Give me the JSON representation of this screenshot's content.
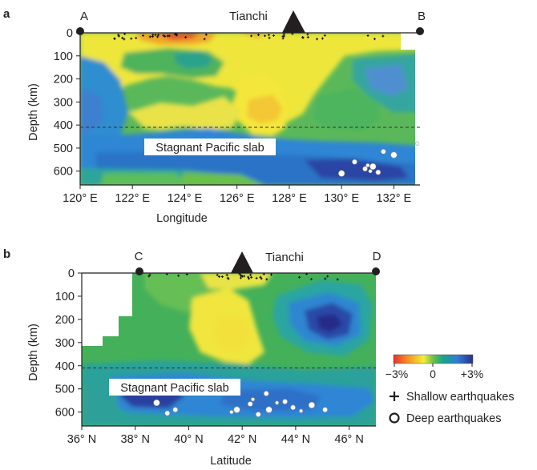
{
  "figure": {
    "panels": [
      {
        "label": "a",
        "top_label": "Tianchi",
        "endpoints": [
          "A",
          "B"
        ],
        "slab_label": "Stagnant Pacific slab",
        "xlabel": "Longitude",
        "ylabel": "Depth (km)",
        "x_ticks": [
          "120° E",
          "122° E",
          "124° E",
          "126° E",
          "128° E",
          "130° E",
          "132° E"
        ],
        "y_ticks": [
          "0",
          "100",
          "200",
          "300",
          "400",
          "500",
          "600"
        ]
      },
      {
        "label": "b",
        "top_label": "Tianchi",
        "endpoints": [
          "C",
          "D"
        ],
        "slab_label": "Stagnant Pacific slab",
        "xlabel": "Latitude",
        "ylabel": "Depth (km)",
        "x_ticks": [
          "36° N",
          "38° N",
          "40° N",
          "42° N",
          "44° N",
          "46° N"
        ],
        "y_ticks": [
          "0",
          "100",
          "200",
          "300",
          "400",
          "500",
          "600"
        ]
      }
    ],
    "colorbar": {
      "labels": [
        "−3%",
        "0",
        "+3%"
      ]
    },
    "legend": {
      "shallow": "Shallow earthquakes",
      "deep": "Deep earthquakes"
    }
  },
  "chart_data": [
    {
      "type": "heatmap",
      "xlabel": "Longitude",
      "ylabel": "Depth (km)",
      "xlim": [
        120,
        133
      ],
      "ylim": [
        0,
        660
      ],
      "x_ticks": [
        120,
        122,
        124,
        126,
        128,
        130,
        132
      ],
      "y_ticks": [
        0,
        100,
        200,
        300,
        400,
        500,
        600
      ],
      "discontinuity_depth_km": 410,
      "volcano_x": 128,
      "profile_endpoints": {
        "A": 120,
        "B": 133
      },
      "deep_earthquakes": [
        {
          "x": 130.0,
          "y": 610
        },
        {
          "x": 130.5,
          "y": 560
        },
        {
          "x": 130.9,
          "y": 590
        },
        {
          "x": 131.1,
          "y": 600
        },
        {
          "x": 131.2,
          "y": 580
        },
        {
          "x": 131.4,
          "y": 605
        },
        {
          "x": 131.0,
          "y": 575
        },
        {
          "x": 131.6,
          "y": 515
        },
        {
          "x": 132.0,
          "y": 530
        },
        {
          "x": 132.9,
          "y": 480
        }
      ]
    },
    {
      "type": "heatmap",
      "xlabel": "Latitude",
      "ylabel": "Depth (km)",
      "xlim": [
        36,
        47
      ],
      "ylim": [
        0,
        660
      ],
      "x_ticks": [
        36,
        38,
        40,
        42,
        44,
        46
      ],
      "y_ticks": [
        0,
        100,
        200,
        300,
        400,
        500,
        600
      ],
      "discontinuity_depth_km": 410,
      "volcano_x": 42,
      "profile_endpoints": {
        "C": 38.1,
        "D": 47
      },
      "deep_earthquakes": [
        {
          "x": 38.8,
          "y": 560
        },
        {
          "x": 39.2,
          "y": 605
        },
        {
          "x": 39.5,
          "y": 590
        },
        {
          "x": 41.6,
          "y": 600
        },
        {
          "x": 41.8,
          "y": 590
        },
        {
          "x": 42.3,
          "y": 565
        },
        {
          "x": 42.4,
          "y": 545
        },
        {
          "x": 42.9,
          "y": 520
        },
        {
          "x": 43.0,
          "y": 590
        },
        {
          "x": 43.3,
          "y": 560
        },
        {
          "x": 43.6,
          "y": 555
        },
        {
          "x": 43.9,
          "y": 580
        },
        {
          "x": 44.6,
          "y": 570
        },
        {
          "x": 45.1,
          "y": 590
        },
        {
          "x": 42.6,
          "y": 610
        },
        {
          "x": 44.2,
          "y": 595
        }
      ]
    }
  ]
}
